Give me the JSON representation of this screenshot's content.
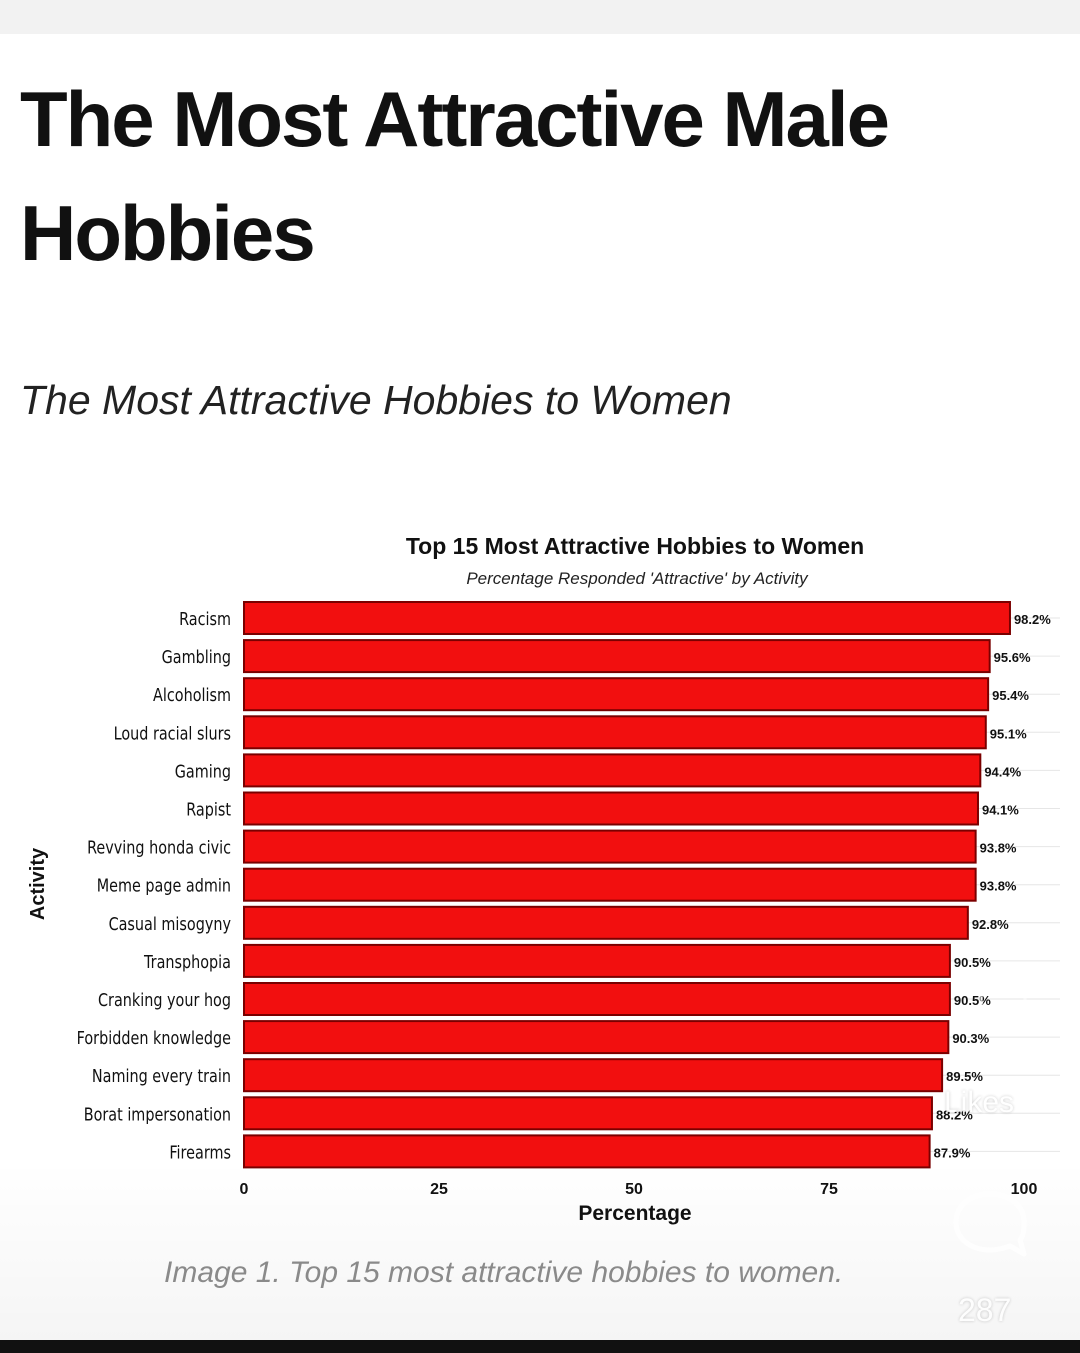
{
  "page": {
    "headline": "The Most Attractive Male Hobbies",
    "subheading": "The Most Attractive Hobbies to Women",
    "caption": "Image 1. Top 15 most attractive hobbies to women."
  },
  "overlay": {
    "likes_label": "Likes",
    "comment_count": "287",
    "heart_icon": "heart-outline-icon",
    "comment_icon": "speech-bubble-icon"
  },
  "colors": {
    "bar_fill": "#f20f0f",
    "bar_stroke": "#7a0000",
    "text": "#111111",
    "grid": "#e6e6e6"
  },
  "chart_data": {
    "type": "bar",
    "orientation": "horizontal",
    "title": "Top 15 Most Attractive Hobbies to Women",
    "subtitle": "Percentage Responded 'Attractive' by Activity",
    "xlabel": "Percentage",
    "ylabel": "Activity",
    "xlim": [
      0,
      100
    ],
    "xticks": [
      "0",
      "25",
      "50",
      "75",
      "100"
    ],
    "categories": [
      "Racism",
      "Gambling",
      "Alcoholism",
      "Loud racial slurs",
      "Gaming",
      "Rapist",
      "Revving honda civic",
      "Meme page admin",
      "Casual misogyny",
      "Transphopia",
      "Cranking your hog",
      "Forbidden knowledge",
      "Naming every train",
      "Borat impersonation",
      "Firearms"
    ],
    "values": [
      98.2,
      95.6,
      95.4,
      95.1,
      94.4,
      94.1,
      93.8,
      93.8,
      92.8,
      90.5,
      90.5,
      90.3,
      89.5,
      88.2,
      87.9
    ],
    "value_labels": [
      "98.2%",
      "95.6%",
      "95.4%",
      "95.1%",
      "94.4%",
      "94.1%",
      "93.8%",
      "93.8%",
      "92.8%",
      "90.5%",
      "90.5%",
      "90.3%",
      "89.5%",
      "88.2%",
      "87.9%"
    ],
    "grid": true
  }
}
